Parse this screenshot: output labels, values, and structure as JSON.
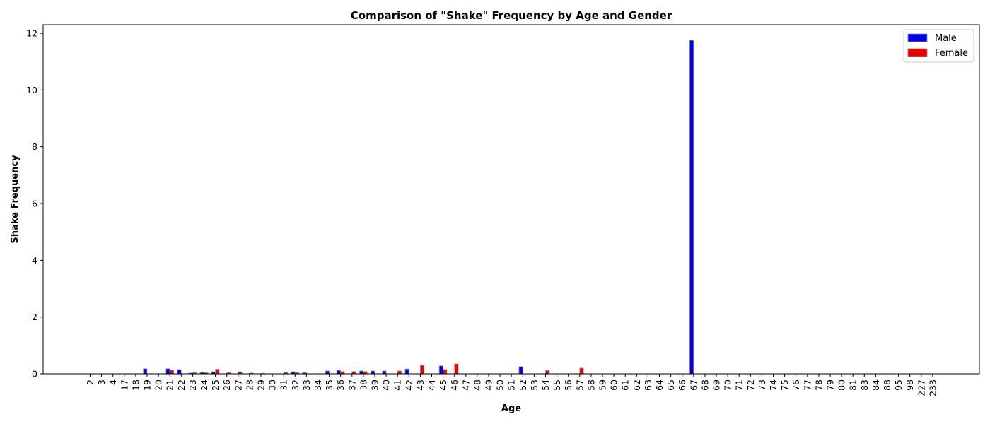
{
  "chart_data": {
    "type": "bar",
    "title": "Comparison of \"Shake\" Frequency by Age and Gender",
    "xlabel": "Age",
    "ylabel": "Shake Frequency",
    "ylim": [
      0,
      12.3
    ],
    "yticks": [
      0,
      2,
      4,
      6,
      8,
      10,
      12
    ],
    "grid": false,
    "legend_position": "top-right",
    "categories": [
      "2",
      "3",
      "4",
      "17",
      "18",
      "19",
      "20",
      "21",
      "22",
      "23",
      "24",
      "25",
      "26",
      "27",
      "28",
      "29",
      "30",
      "31",
      "32",
      "33",
      "34",
      "35",
      "36",
      "37",
      "38",
      "39",
      "40",
      "41",
      "42",
      "43",
      "44",
      "45",
      "46",
      "47",
      "48",
      "49",
      "50",
      "51",
      "52",
      "53",
      "54",
      "55",
      "56",
      "57",
      "58",
      "59",
      "60",
      "61",
      "62",
      "63",
      "64",
      "65",
      "66",
      "67",
      "68",
      "69",
      "70",
      "71",
      "72",
      "73",
      "74",
      "75",
      "76",
      "77",
      "78",
      "79",
      "80",
      "81",
      "83",
      "84",
      "88",
      "95",
      "98",
      "227",
      "233"
    ],
    "series": [
      {
        "name": "Male",
        "color": "#0000ee",
        "values": [
          0,
          0,
          0,
          0,
          0,
          0.18,
          0,
          0.18,
          0.15,
          0.03,
          0.05,
          0.07,
          0,
          0,
          0,
          0,
          0,
          0,
          0.07,
          0.04,
          0,
          0.1,
          0.12,
          0,
          0.1,
          0.1,
          0.1,
          0,
          0.17,
          0,
          0,
          0.28,
          0,
          0,
          0,
          0,
          0,
          0,
          0.25,
          0,
          0,
          0,
          0,
          0,
          0,
          0,
          0,
          0,
          0,
          0,
          0,
          0,
          0,
          11.75,
          0,
          0,
          0,
          0,
          0,
          0,
          0,
          0,
          0,
          0,
          0,
          0,
          0,
          0,
          0,
          0,
          0,
          0,
          0,
          0,
          0
        ]
      },
      {
        "name": "Female",
        "color": "#ee0000",
        "values": [
          0,
          0,
          0,
          0,
          0,
          0,
          0,
          0.13,
          0,
          0.04,
          0.04,
          0.16,
          0.04,
          0.07,
          0.03,
          0.02,
          0,
          0.05,
          0.04,
          0,
          0,
          0,
          0.08,
          0.08,
          0.08,
          0,
          0,
          0.1,
          0,
          0.3,
          0,
          0.15,
          0.35,
          0,
          0,
          0,
          0,
          0,
          0,
          0,
          0.12,
          0,
          0,
          0.2,
          0,
          0,
          0,
          0,
          0,
          0,
          0,
          0,
          0,
          0,
          0,
          0,
          0,
          0,
          0,
          0,
          0,
          0,
          0,
          0,
          0,
          0,
          0,
          0,
          0,
          0,
          0,
          0,
          0,
          0,
          0
        ]
      }
    ]
  }
}
